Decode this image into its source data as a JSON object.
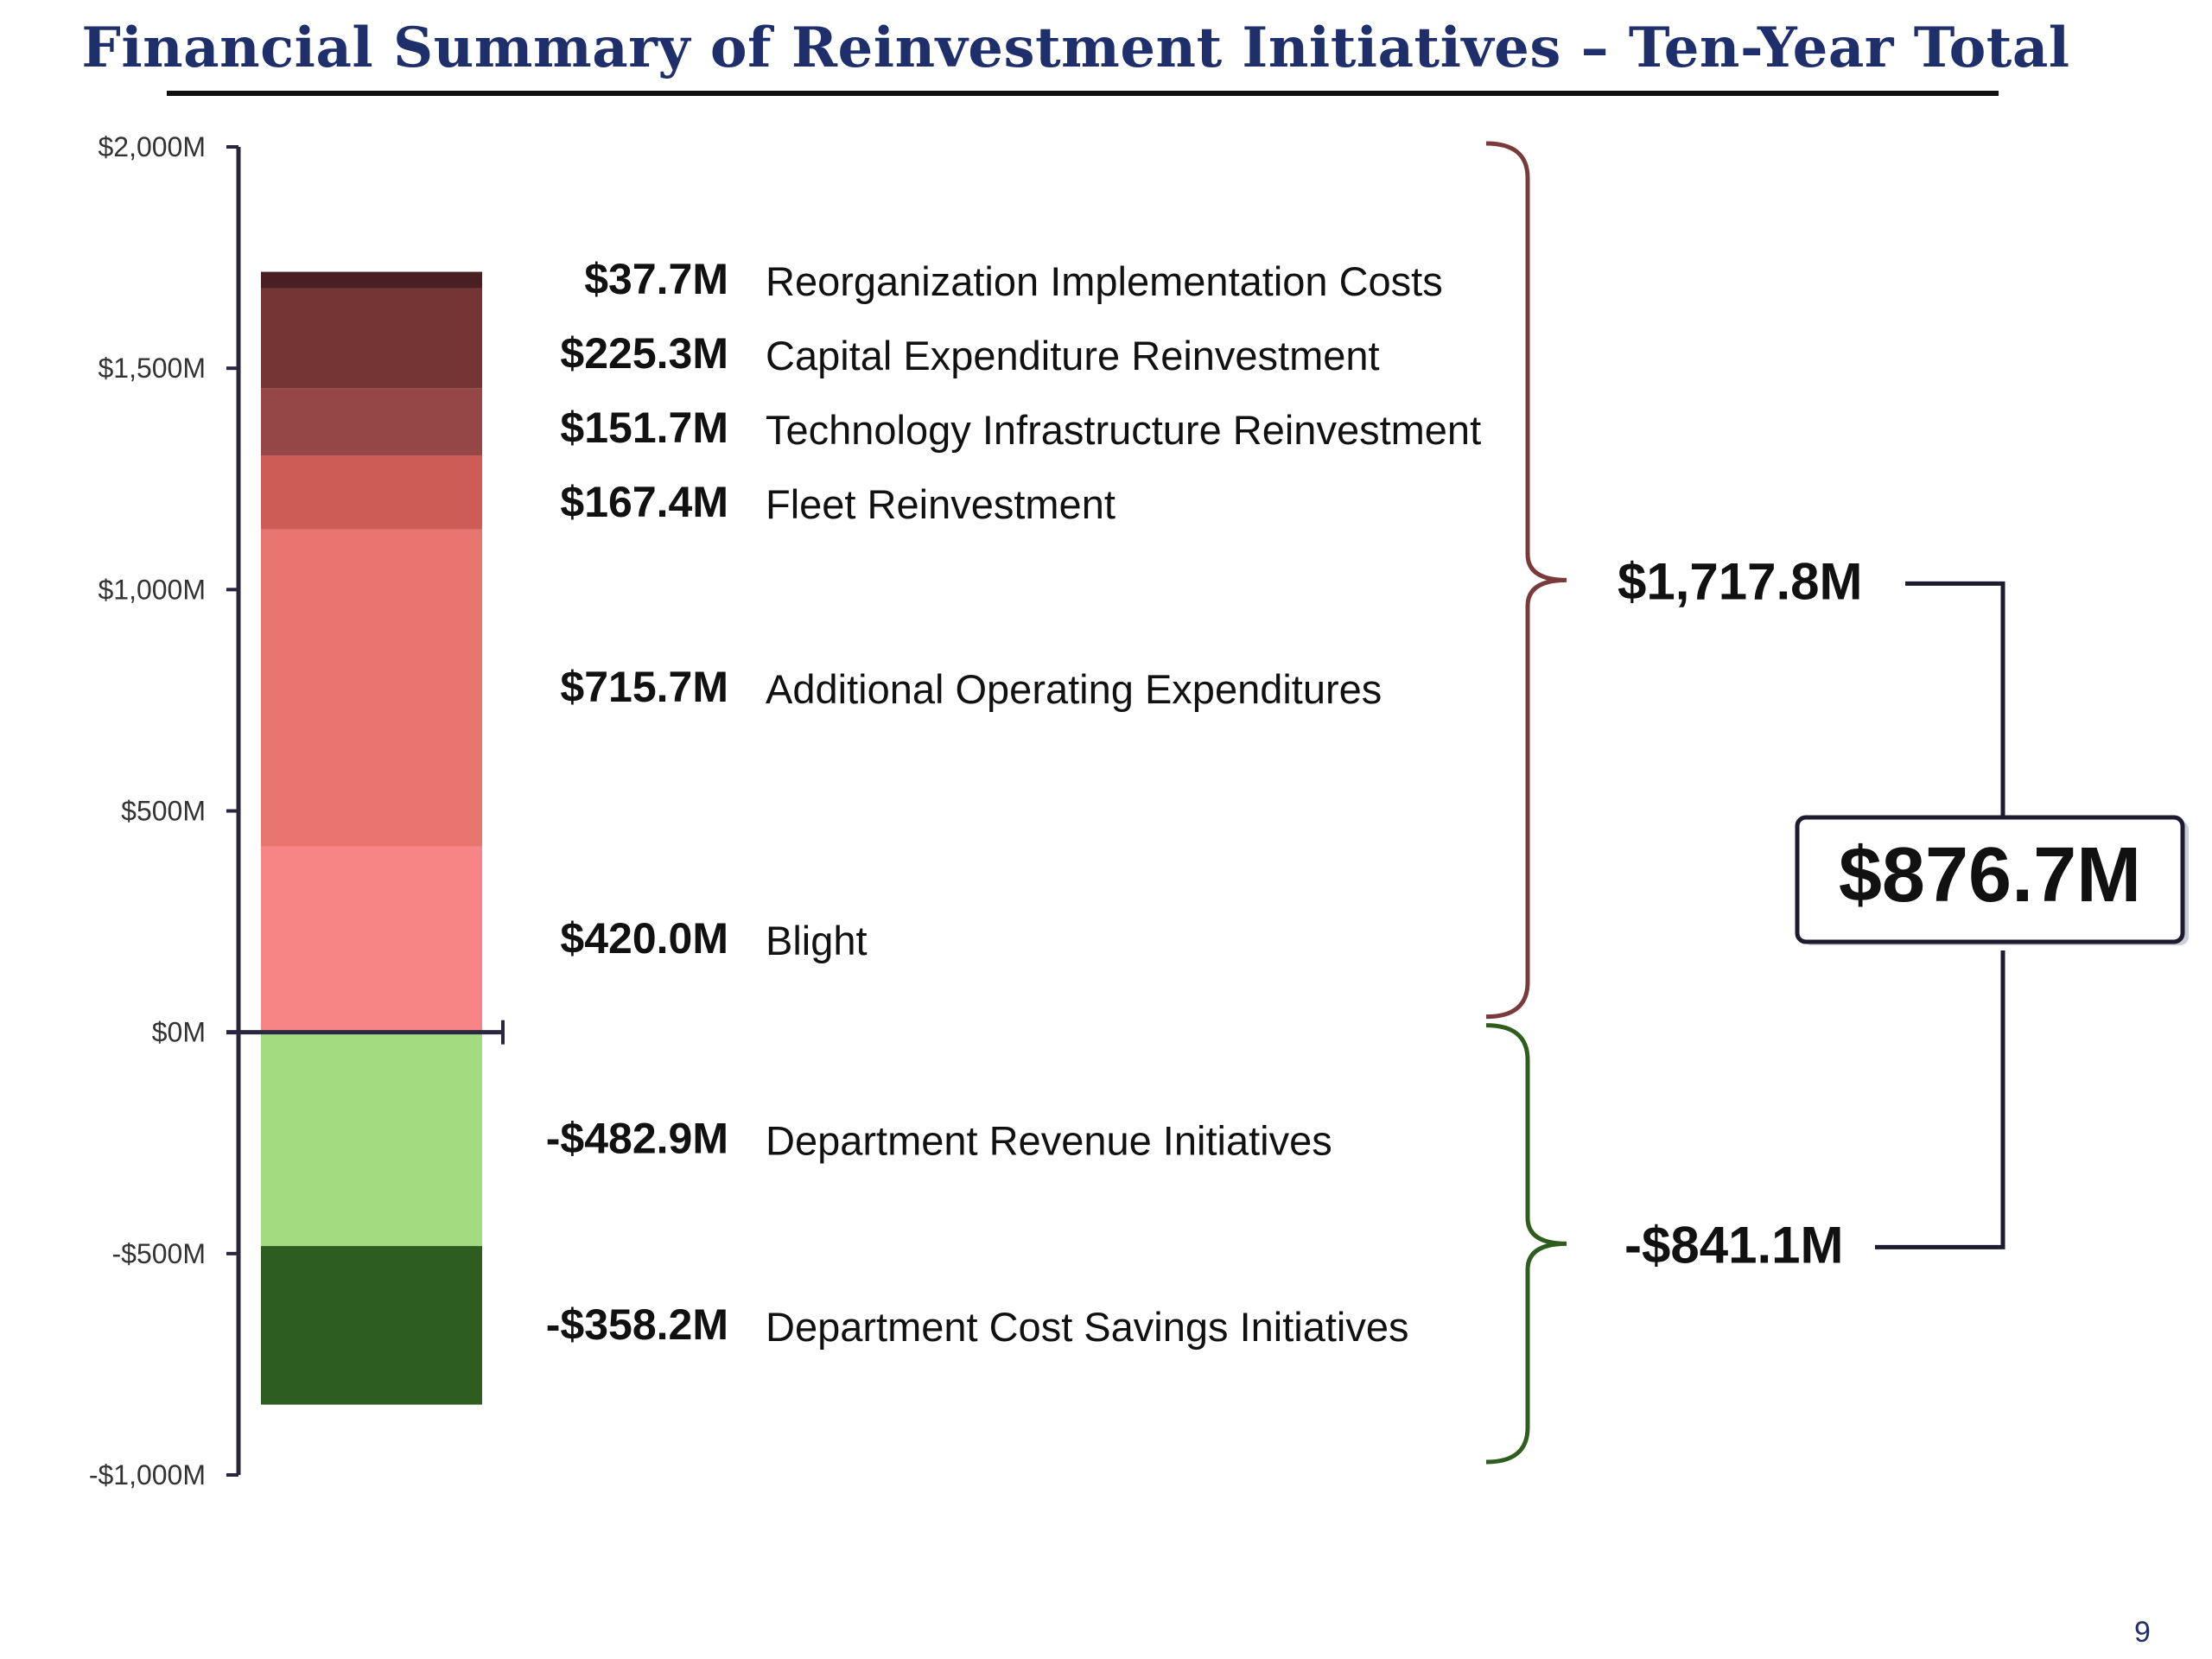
{
  "title": "Financial Summary of Reinvestment Initiatives – Ten-Year Total",
  "page_number": "9",
  "chart_data": {
    "type": "bar",
    "subtype": "stacked-single-column",
    "title": "Financial Summary of Reinvestment Initiatives – Ten-Year Total",
    "ylim": [
      -1000,
      2000
    ],
    "y_unit": "$M",
    "y_ticks": [
      {
        "value": 2000,
        "label": "$2,000M"
      },
      {
        "value": 1500,
        "label": "$1,500M"
      },
      {
        "value": 1000,
        "label": "$1,000M"
      },
      {
        "value": 500,
        "label": "$500M"
      },
      {
        "value": 0,
        "label": "$0M"
      },
      {
        "value": -500,
        "label": "-$500M"
      },
      {
        "value": -1000,
        "label": "-$1,000M"
      }
    ],
    "grid": false,
    "legend": "none",
    "segments": [
      {
        "name": "Blight",
        "value": 420.0,
        "value_label": "$420.0M",
        "color": "#f88585"
      },
      {
        "name": "Additional Operating Expenditures",
        "value": 715.7,
        "value_label": "$715.7M",
        "color": "#e8756d"
      },
      {
        "name": "Fleet Reinvestment",
        "value": 167.4,
        "value_label": "$167.4M",
        "color": "#cd5c57"
      },
      {
        "name": "Technology Infrastructure Reinvestment",
        "value": 151.7,
        "value_label": "$151.7M",
        "color": "#954646"
      },
      {
        "name": "Capital Expenditure Reinvestment",
        "value": 225.3,
        "value_label": "$225.3M",
        "color": "#763535"
      },
      {
        "name": "Reorganization Implementation Costs",
        "value": 37.7,
        "value_label": "$37.7M",
        "color": "#4a1f22"
      },
      {
        "name": "Department Revenue Initiatives",
        "value": -482.9,
        "value_label": "-$482.9M",
        "color": "#a3dc80"
      },
      {
        "name": "Department Cost Savings Initiatives",
        "value": -358.2,
        "value_label": "-$358.2M",
        "color": "#2d5e1f"
      }
    ],
    "totals": {
      "positive": {
        "value": 1717.8,
        "label": "$1,717.8M",
        "brace_color": "#7a3a3a"
      },
      "negative": {
        "value": -841.1,
        "label": "-$841.1M",
        "brace_color": "#2e5e1e"
      },
      "net": {
        "value": 876.7,
        "label": "$876.7M"
      }
    }
  }
}
